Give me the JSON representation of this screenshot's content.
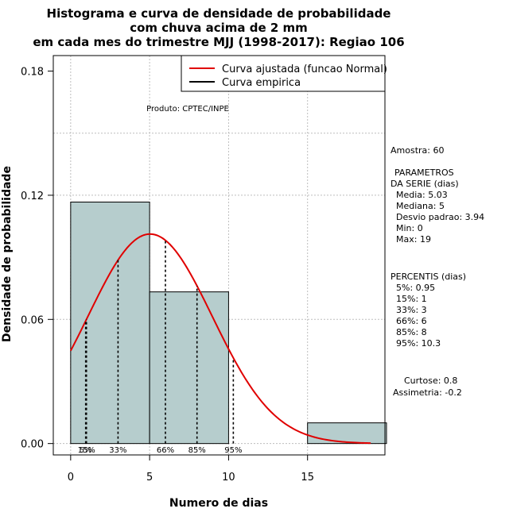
{
  "chart_data": {
    "type": "histogram",
    "title_lines": [
      "Histograma e curva de densidade de probabilidade",
      "com chuva acima de 2 mm",
      "em cada mes do trimestre MJJ (1998-2017): Regiao 106"
    ],
    "xlabel": "Numero de dias",
    "ylabel": "Densidade de probabilidade",
    "xlim": [
      -1.1,
      19.9
    ],
    "ylim": [
      -0.0055,
      0.1875
    ],
    "x_ticks": [
      0,
      5,
      10,
      15
    ],
    "y_ticks": [
      0.0,
      0.06,
      0.12,
      0.18
    ],
    "y_tick_labels": [
      "0.00",
      "0.06",
      "0.12",
      "0.18"
    ],
    "bars": [
      {
        "x0": 0,
        "x1": 5,
        "density": 0.1167
      },
      {
        "x0": 5,
        "x1": 10,
        "density": 0.0733
      },
      {
        "x0": 15,
        "x1": 20,
        "density": 0.01
      }
    ],
    "bar_color": "#b6cdcd",
    "curve": {
      "name": "Curva ajustada (funcao Normal)",
      "color": "#e00000",
      "mean": 5.03,
      "sd": 3.94,
      "x_from": 0,
      "x_to": 19
    },
    "empirical_legend": "Curva empirica",
    "percentiles": [
      {
        "value": 0.95,
        "label": "5%"
      },
      {
        "value": 1,
        "label": "15%"
      },
      {
        "value": 3,
        "label": "33%"
      },
      {
        "value": 6,
        "label": "66%"
      },
      {
        "value": 8,
        "label": "85%"
      },
      {
        "value": 10.3,
        "label": "95%"
      }
    ],
    "gridlines_x": [
      0,
      5,
      10,
      15
    ],
    "gridlines_y": [
      0.0,
      0.06,
      0.12,
      0.15
    ],
    "producer": "Produto: CPTEC/INPE",
    "legend_position": "top-right"
  },
  "stats": {
    "lines_block1": [
      "Amostra: 60"
    ],
    "lines_block2": [
      "PARAMETROS",
      "DA SERIE (dias)",
      "Media: 5.03",
      "Mediana: 5",
      "Desvio padrao: 3.94",
      "Min: 0",
      "Max: 19"
    ],
    "lines_block3": [
      "PERCENTIS (dias)",
      "5%: 0.95",
      "15%: 1",
      "33%: 3",
      "66%: 6",
      "85%: 8",
      "95%: 10.3"
    ],
    "lines_block4": [
      "Curtose: 0.8",
      "Assimetria: -0.2"
    ]
  }
}
